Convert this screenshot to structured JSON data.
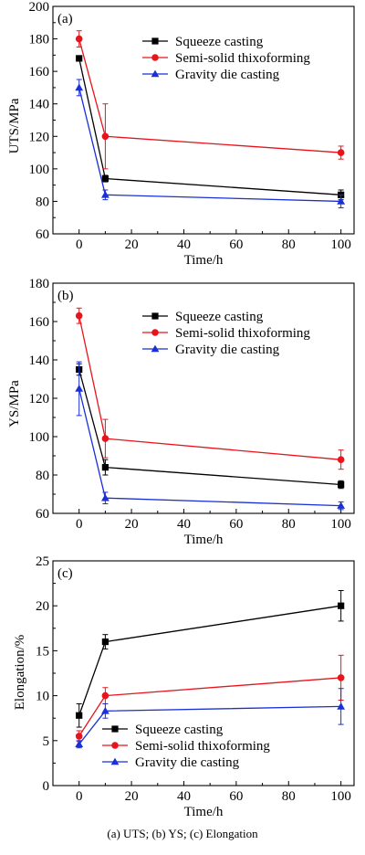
{
  "caption": "(a) UTS; (b) YS; (c) Elongation",
  "chart_data": [
    {
      "type": "line",
      "panel_label": "(a)",
      "xlabel": "Time/h",
      "ylabel": "UTS/MPa",
      "xlim": [
        -10,
        105
      ],
      "ylim": [
        60,
        200
      ],
      "xticks": [
        0,
        20,
        40,
        60,
        80,
        100
      ],
      "yticks": [
        60,
        80,
        100,
        120,
        140,
        160,
        180,
        200
      ],
      "legend_position": "top-right",
      "x": [
        0,
        10,
        100
      ],
      "series": [
        {
          "name": "Squeeze casting",
          "color": "#000000",
          "marker": "square",
          "values": [
            168,
            94,
            84
          ],
          "errors": [
            0,
            2,
            3
          ]
        },
        {
          "name": "Semi-solid thixoforming",
          "color": "#e8141c",
          "marker": "circle",
          "values": [
            180,
            120,
            110
          ],
          "errors": [
            5,
            20,
            4
          ]
        },
        {
          "name": "Gravity die casting",
          "color": "#1a2fd6",
          "marker": "triangle",
          "values": [
            150,
            84,
            80
          ],
          "errors": [
            5,
            3,
            4
          ]
        }
      ]
    },
    {
      "type": "line",
      "panel_label": "(b)",
      "xlabel": "Time/h",
      "ylabel": "YS/MPa",
      "xlim": [
        -10,
        105
      ],
      "ylim": [
        60,
        180
      ],
      "xticks": [
        0,
        20,
        40,
        60,
        80,
        100
      ],
      "yticks": [
        60,
        80,
        100,
        120,
        140,
        160,
        180
      ],
      "legend_position": "top-right",
      "x": [
        0,
        10,
        100
      ],
      "series": [
        {
          "name": "Squeeze casting",
          "color": "#000000",
          "marker": "square",
          "values": [
            135,
            84,
            75
          ],
          "errors": [
            3,
            4,
            2
          ]
        },
        {
          "name": "Semi-solid thixoforming",
          "color": "#e8141c",
          "marker": "circle",
          "values": [
            163,
            99,
            88
          ],
          "errors": [
            4,
            10,
            5
          ]
        },
        {
          "name": "Gravity die casting",
          "color": "#1a2fd6",
          "marker": "triangle",
          "values": [
            125,
            68,
            64
          ],
          "errors": [
            14,
            3,
            2
          ]
        }
      ]
    },
    {
      "type": "line",
      "panel_label": "(c)",
      "xlabel": "Time/h",
      "ylabel": "Elongation/%",
      "xlim": [
        -10,
        105
      ],
      "ylim": [
        0,
        25
      ],
      "xticks": [
        0,
        20,
        40,
        60,
        80,
        100
      ],
      "yticks": [
        0,
        5,
        10,
        15,
        20,
        25
      ],
      "legend_position": "bottom-left",
      "x": [
        0,
        10,
        100
      ],
      "series": [
        {
          "name": "Squeeze casting",
          "color": "#000000",
          "marker": "square",
          "values": [
            7.8,
            16,
            20
          ],
          "errors": [
            1.3,
            0.8,
            1.7
          ]
        },
        {
          "name": "Semi-solid thixoforming",
          "color": "#e8141c",
          "marker": "circle",
          "values": [
            5.5,
            10,
            12
          ],
          "errors": [
            0.6,
            0.9,
            2.5
          ]
        },
        {
          "name": "Gravity die casting",
          "color": "#1a2fd6",
          "marker": "triangle",
          "values": [
            4.6,
            8.3,
            8.8
          ],
          "errors": [
            0.4,
            0.8,
            2
          ]
        }
      ]
    }
  ]
}
